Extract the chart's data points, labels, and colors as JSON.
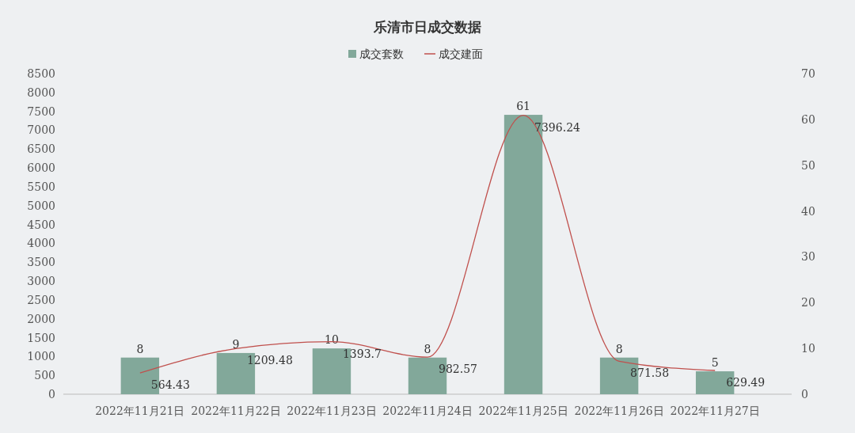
{
  "chart_data": {
    "type": "bar",
    "title": "乐清市日成交数据",
    "categories": [
      "2022年11月21日",
      "2022年11月22日",
      "2022年11月23日",
      "2022年11月24日",
      "2022年11月25日",
      "2022年11月26日",
      "2022年11月27日"
    ],
    "series": [
      {
        "name": "成交套数",
        "axis": "y2",
        "color": "#82a89a",
        "values": [
          8,
          9,
          10,
          8,
          61,
          8,
          5
        ]
      },
      {
        "name": "成交建面",
        "type": "line",
        "axis": "y",
        "color": "#c0504d",
        "values": [
          564.43,
          1209.48,
          1393.7,
          982.57,
          7396.24,
          871.58,
          629.49
        ]
      }
    ],
    "ylim": [
      0,
      8500
    ],
    "yticks": [
      0,
      500,
      1000,
      1500,
      2000,
      2500,
      3000,
      3500,
      4000,
      4500,
      5000,
      5500,
      6000,
      6500,
      7000,
      7500,
      8000,
      8500
    ],
    "y2lim": [
      0,
      70
    ],
    "y2ticks": [
      0,
      10,
      20,
      30,
      40,
      50,
      60,
      70
    ],
    "data_labels": true,
    "legend": "top",
    "grid": false,
    "marker": "none"
  }
}
